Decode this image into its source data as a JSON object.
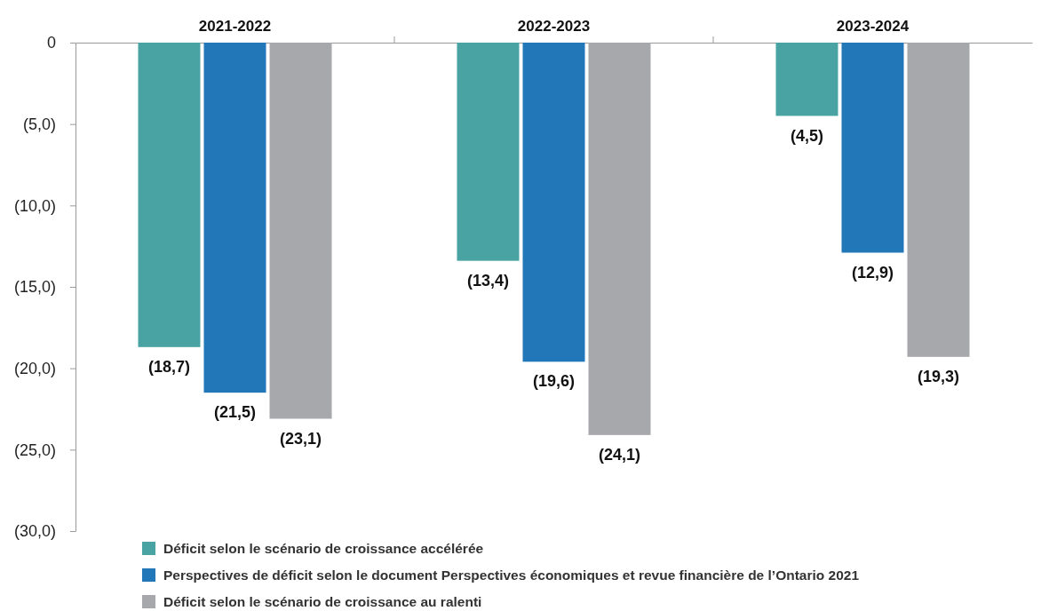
{
  "chart_data": {
    "type": "bar",
    "categories": [
      "2021-2022",
      "2022-2023",
      "2023-2024"
    ],
    "series": [
      {
        "name": "Déficit selon le scénario de croissance accélérée",
        "color": "#4aa3a3",
        "values": [
          -18.7,
          -13.4,
          -4.5
        ],
        "value_labels": [
          "(18,7)",
          "(13,4)",
          "(4,5)"
        ]
      },
      {
        "name": "Perspectives de déficit selon le document Perspectives économiques et revue financière de l’Ontario 2021",
        "color": "#2277b8",
        "values": [
          -21.5,
          -19.6,
          -12.9
        ],
        "value_labels": [
          "(21,5)",
          "(19,6)",
          "(12,9)"
        ]
      },
      {
        "name": "Déficit selon le scénario de croissance au ralenti",
        "color": "#a7a8ab",
        "values": [
          -23.1,
          -24.1,
          -19.3
        ],
        "value_labels": [
          "(23,1)",
          "(24,1)",
          "(19,3)"
        ]
      }
    ],
    "ylim": [
      -30,
      0
    ],
    "yticks": [
      0,
      {
        "value": -5,
        "label": "(5,0)"
      },
      {
        "value": -10,
        "label": "(10,0)"
      },
      {
        "value": -15,
        "label": "(15,0)"
      },
      {
        "value": -20,
        "label": "(20,0)"
      },
      {
        "value": -25,
        "label": "(25,0)"
      },
      {
        "value": -30,
        "label": "(30,0)"
      }
    ],
    "legend": "bottom",
    "grid": false
  }
}
